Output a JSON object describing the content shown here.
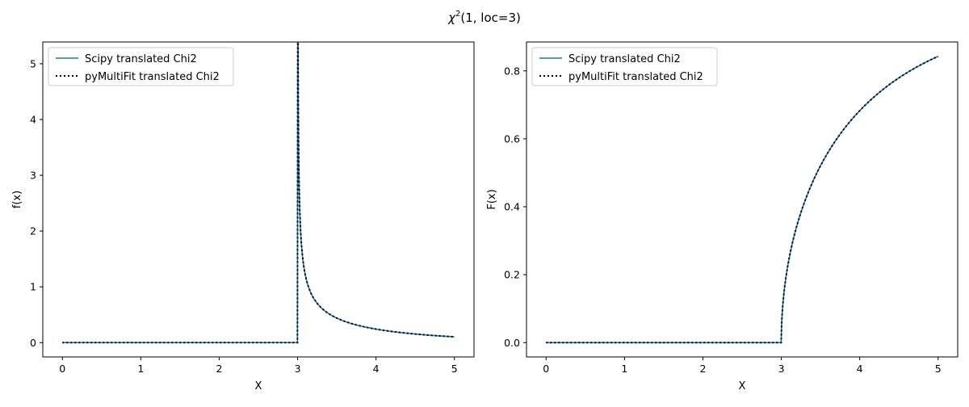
{
  "figure": {
    "suptitle": {
      "symbol": "χ",
      "superscript": "2",
      "rest": "(1, loc=3)"
    }
  },
  "colors": {
    "scipy_line": "#1f77b4",
    "pymultifit_line": "#000000",
    "axes": "#000000",
    "legend_border": "#cccccc"
  },
  "chart_data": [
    {
      "type": "line",
      "xlabel": "X",
      "ylabel": "f(x)",
      "xlim": [
        -0.25,
        5.25
      ],
      "ylim": [
        -0.257,
        5.39
      ],
      "xticks": [
        0,
        1,
        2,
        3,
        4,
        5
      ],
      "xtick_labels": [
        "0",
        "1",
        "2",
        "3",
        "4",
        "5"
      ],
      "yticks": [
        0,
        1,
        2,
        3,
        4,
        5
      ],
      "ytick_labels": [
        "0",
        "1",
        "2",
        "3",
        "4",
        "5"
      ],
      "grid": false,
      "legend_placement": "upper-left",
      "function": "chi2_pdf",
      "df": 1,
      "loc": 3,
      "x_domain": [
        0,
        5
      ],
      "series": [
        {
          "name": "Scipy translated Chi2",
          "style": "solid",
          "color": "#1f77b4"
        },
        {
          "name": "pyMultiFit translated Chi2",
          "style": "dotted",
          "color": "#000000"
        }
      ]
    },
    {
      "type": "line",
      "xlabel": "X",
      "ylabel": "F(x)",
      "xlim": [
        -0.25,
        5.25
      ],
      "ylim": [
        -0.0421,
        0.885
      ],
      "xticks": [
        0,
        1,
        2,
        3,
        4,
        5
      ],
      "xtick_labels": [
        "0",
        "1",
        "2",
        "3",
        "4",
        "5"
      ],
      "yticks": [
        0,
        0.2,
        0.4,
        0.6,
        0.8
      ],
      "ytick_labels": [
        "0.0",
        "0.2",
        "0.4",
        "0.6",
        "0.8"
      ],
      "grid": false,
      "legend_placement": "upper-left",
      "function": "chi2_cdf",
      "df": 1,
      "loc": 3,
      "x_domain": [
        0,
        5
      ],
      "series": [
        {
          "name": "Scipy translated Chi2",
          "style": "solid",
          "color": "#1f77b4"
        },
        {
          "name": "pyMultiFit translated Chi2",
          "style": "dotted",
          "color": "#000000"
        }
      ]
    }
  ]
}
